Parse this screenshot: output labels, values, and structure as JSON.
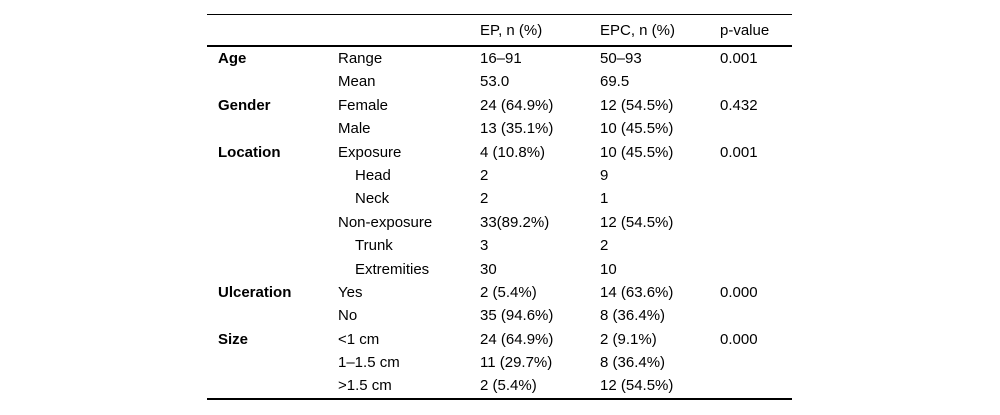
{
  "table": {
    "columns": [
      "",
      "",
      "EP, n (%)",
      "EPC, n (%)",
      "p-value"
    ],
    "rows": [
      {
        "category": "Age",
        "sub": "Range",
        "indent": 0,
        "ep": "16–91",
        "epc": "50–93",
        "p": "0.001"
      },
      {
        "category": "",
        "sub": "Mean",
        "indent": 0,
        "ep": "53.0",
        "epc": "69.5",
        "p": ""
      },
      {
        "category": "Gender",
        "sub": "Female",
        "indent": 0,
        "ep": "24 (64.9%)",
        "epc": "12 (54.5%)",
        "p": "0.432"
      },
      {
        "category": "",
        "sub": "Male",
        "indent": 0,
        "ep": "13 (35.1%)",
        "epc": "10 (45.5%)",
        "p": ""
      },
      {
        "category": "Location",
        "sub": "Exposure",
        "indent": 0,
        "ep": "4 (10.8%)",
        "epc": "10 (45.5%)",
        "p": "0.001"
      },
      {
        "category": "",
        "sub": "Head",
        "indent": 1,
        "ep": "2",
        "epc": "9",
        "p": ""
      },
      {
        "category": "",
        "sub": "Neck",
        "indent": 1,
        "ep": "2",
        "epc": "1",
        "p": ""
      },
      {
        "category": "",
        "sub": "Non-exposure",
        "indent": 0,
        "ep": "33(89.2%)",
        "epc": "12 (54.5%)",
        "p": ""
      },
      {
        "category": "",
        "sub": "Trunk",
        "indent": 1,
        "ep": "3",
        "epc": "2",
        "p": ""
      },
      {
        "category": "",
        "sub": "Extremities",
        "indent": 1,
        "ep": "30",
        "epc": "10",
        "p": ""
      },
      {
        "category": "Ulceration",
        "sub": "Yes",
        "indent": 0,
        "ep": "2 (5.4%)",
        "epc": "14 (63.6%)",
        "p": "0.000"
      },
      {
        "category": "",
        "sub": "No",
        "indent": 0,
        "ep": "35 (94.6%)",
        "epc": "8 (36.4%)",
        "p": ""
      },
      {
        "category": "Size",
        "sub": "<1 cm",
        "indent": 0,
        "ep": "24 (64.9%)",
        "epc": "2 (9.1%)",
        "p": "0.000"
      },
      {
        "category": "",
        "sub": "1–1.5 cm",
        "indent": 0,
        "ep": "11 (29.7%)",
        "epc": "8 (36.4%)",
        "p": ""
      },
      {
        "category": "",
        "sub": ">1.5 cm",
        "indent": 0,
        "ep": "2 (5.4%)",
        "epc": "12 (54.5%)",
        "p": ""
      }
    ],
    "colors": {
      "text": "#000000",
      "background": "#ffffff",
      "rule": "#000000"
    }
  }
}
